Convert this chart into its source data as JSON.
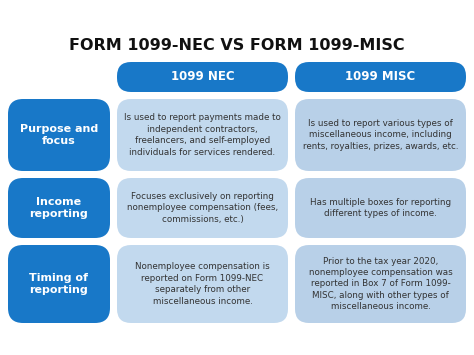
{
  "title": "FORM 1099-NEC VS FORM 1099-MISC",
  "title_fontsize": 11.5,
  "title_fontweight": "bold",
  "background_color": "#ffffff",
  "col_headers": [
    "1099 NEC",
    "1099 MISC"
  ],
  "col_header_color": "#1878c8",
  "col_header_text_color": "#ffffff",
  "row_labels": [
    "Purpose and\nfocus",
    "Income\nreporting",
    "Timing of\nreporting"
  ],
  "row_label_color": "#1878c8",
  "row_label_text_color": "#ffffff",
  "nec_content_color": "#c2d9ee",
  "misc_content_color": "#b8d0e8",
  "content_text_color": "#333333",
  "nec_texts": [
    "Is used to report payments made to\nindependent contractors,\nfreelancers, and self-employed\nindividuals for services rendered.",
    "Focuses exclusively on reporting\nnonemployee compensation (fees,\ncommissions, etc.)",
    "Nonemployee compensation is\nreported on Form 1099-NEC\nseparately from other\nmiscellaneous income."
  ],
  "misc_texts": [
    "Is used to report various types of\nmiscellaneous income, including\nrents, royalties, prizes, awards, etc.",
    "Has multiple boxes for reporting\ndifferent types of income.",
    "Prior to the tax year 2020,\nnonemployee compensation was\nreported in Box 7 of Form 1099-\nMISC, along with other types of\nmiscellaneous income."
  ]
}
